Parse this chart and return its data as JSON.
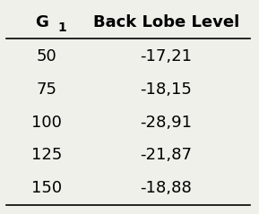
{
  "col1_header": "G",
  "col1_sub": "1",
  "col2_header": "Back Lobe Level",
  "rows": [
    [
      "50",
      "-17,21"
    ],
    [
      "75",
      "-18,15"
    ],
    [
      "100",
      "-28,91"
    ],
    [
      "125",
      "-21,87"
    ],
    [
      "150",
      "-18,88"
    ]
  ],
  "background_color": "#f0f0eb",
  "header_fontsize": 13,
  "data_fontsize": 13,
  "font_weight_header": "bold",
  "font_weight_data": "normal"
}
